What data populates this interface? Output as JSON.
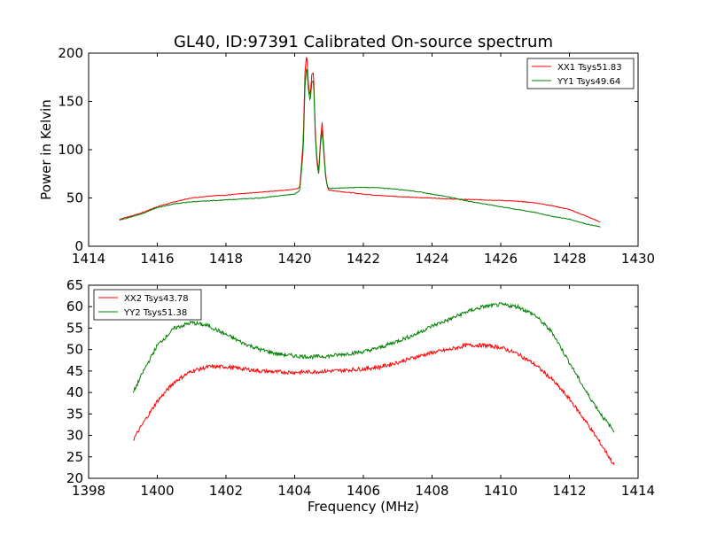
{
  "chart_data": [
    {
      "type": "line",
      "title": "GL40, ID:97391 Calibrated On-source spectrum",
      "xlabel": "",
      "ylabel": "Power in Kelvin",
      "xlim": [
        1414,
        1430
      ],
      "ylim": [
        0,
        200
      ],
      "xticks": [
        1414,
        1416,
        1418,
        1420,
        1422,
        1424,
        1426,
        1428,
        1430
      ],
      "yticks": [
        0,
        50,
        100,
        150,
        200
      ],
      "legend_position": "top-right",
      "series": [
        {
          "name": "XX1 Tsys51.83",
          "color": "#ff0000",
          "x": [
            1414.9,
            1415.5,
            1416.0,
            1416.5,
            1417.0,
            1417.5,
            1418.0,
            1418.5,
            1419.0,
            1419.5,
            1420.0,
            1420.15,
            1420.25,
            1420.3,
            1420.35,
            1420.4,
            1420.45,
            1420.5,
            1420.55,
            1420.6,
            1420.65,
            1420.7,
            1420.75,
            1420.8,
            1420.85,
            1420.9,
            1420.95,
            1421.0,
            1421.5,
            1422.0,
            1422.5,
            1423.0,
            1423.5,
            1424.0,
            1424.5,
            1425.0,
            1425.5,
            1426.0,
            1426.5,
            1427.0,
            1427.5,
            1428.0,
            1428.5,
            1428.9
          ],
          "values": [
            28,
            34,
            41,
            46,
            50,
            52,
            53,
            54.5,
            56,
            57.5,
            59,
            61,
            110,
            180,
            200,
            168,
            155,
            178,
            180,
            120,
            90,
            78,
            110,
            128,
            100,
            75,
            62,
            58,
            56,
            54,
            52.5,
            51.5,
            50.5,
            50,
            49,
            48.5,
            48,
            47.5,
            46.5,
            45,
            42,
            38,
            31,
            25
          ]
        },
        {
          "name": "YY1 Tsys49.64",
          "color": "#008000",
          "x": [
            1414.9,
            1415.5,
            1416.0,
            1416.5,
            1417.0,
            1417.5,
            1418.0,
            1418.5,
            1419.0,
            1419.5,
            1420.0,
            1420.15,
            1420.25,
            1420.3,
            1420.35,
            1420.4,
            1420.45,
            1420.5,
            1420.55,
            1420.6,
            1420.65,
            1420.7,
            1420.75,
            1420.8,
            1420.85,
            1420.9,
            1420.95,
            1421.0,
            1421.5,
            1422.0,
            1422.5,
            1423.0,
            1423.5,
            1424.0,
            1424.5,
            1425.0,
            1425.5,
            1426.0,
            1426.5,
            1427.0,
            1427.5,
            1428.0,
            1428.5,
            1428.9
          ],
          "values": [
            27,
            33,
            40,
            44,
            46,
            47,
            48,
            49,
            50,
            52,
            54,
            58,
            100,
            165,
            188,
            162,
            150,
            170,
            172,
            115,
            85,
            75,
            105,
            120,
            95,
            72,
            62,
            60,
            60.5,
            61,
            60.5,
            59,
            57,
            54,
            51,
            47,
            44,
            41,
            38,
            35,
            31,
            28,
            23,
            20
          ]
        }
      ]
    },
    {
      "type": "line",
      "title": "",
      "xlabel": "Frequency (MHz)",
      "ylabel": "",
      "xlim": [
        1398,
        1414
      ],
      "ylim": [
        20,
        65
      ],
      "xticks": [
        1398,
        1400,
        1402,
        1404,
        1406,
        1408,
        1410,
        1412,
        1414
      ],
      "yticks": [
        20,
        25,
        30,
        35,
        40,
        45,
        50,
        55,
        60,
        65
      ],
      "legend_position": "top-left",
      "series": [
        {
          "name": "XX2 Tsys43.78",
          "color": "#ff0000",
          "x": [
            1399.3,
            1399.6,
            1400.0,
            1400.5,
            1401.0,
            1401.5,
            1402.0,
            1402.5,
            1403.0,
            1403.5,
            1404.0,
            1404.5,
            1405.0,
            1405.5,
            1406.0,
            1406.5,
            1407.0,
            1407.5,
            1408.0,
            1408.5,
            1409.0,
            1409.5,
            1410.0,
            1410.5,
            1411.0,
            1411.5,
            1412.0,
            1412.5,
            1413.0,
            1413.3
          ],
          "values": [
            29,
            33,
            38,
            42.5,
            45,
            46,
            46,
            45.5,
            45,
            44.8,
            44.7,
            44.8,
            45,
            45.2,
            45.5,
            46,
            47,
            48.2,
            49.3,
            50,
            51,
            51,
            50.5,
            49,
            46.5,
            43,
            38.5,
            33,
            27,
            23
          ]
        },
        {
          "name": "YY2 Tsys51.38",
          "color": "#008000",
          "x": [
            1399.3,
            1399.6,
            1400.0,
            1400.5,
            1401.0,
            1401.5,
            1402.0,
            1402.5,
            1403.0,
            1403.5,
            1404.0,
            1404.5,
            1405.0,
            1405.5,
            1406.0,
            1406.5,
            1407.0,
            1407.5,
            1408.0,
            1408.5,
            1409.0,
            1409.5,
            1410.0,
            1410.5,
            1411.0,
            1411.5,
            1412.0,
            1412.5,
            1413.0,
            1413.3
          ],
          "values": [
            40,
            45,
            51,
            55,
            56.3,
            55.5,
            53.5,
            51.5,
            50,
            49,
            48.5,
            48.3,
            48.5,
            49,
            49.5,
            50.5,
            52,
            53.5,
            55.5,
            57,
            58.8,
            60,
            60.5,
            60,
            58,
            54,
            47,
            40,
            34,
            31
          ]
        }
      ]
    }
  ]
}
